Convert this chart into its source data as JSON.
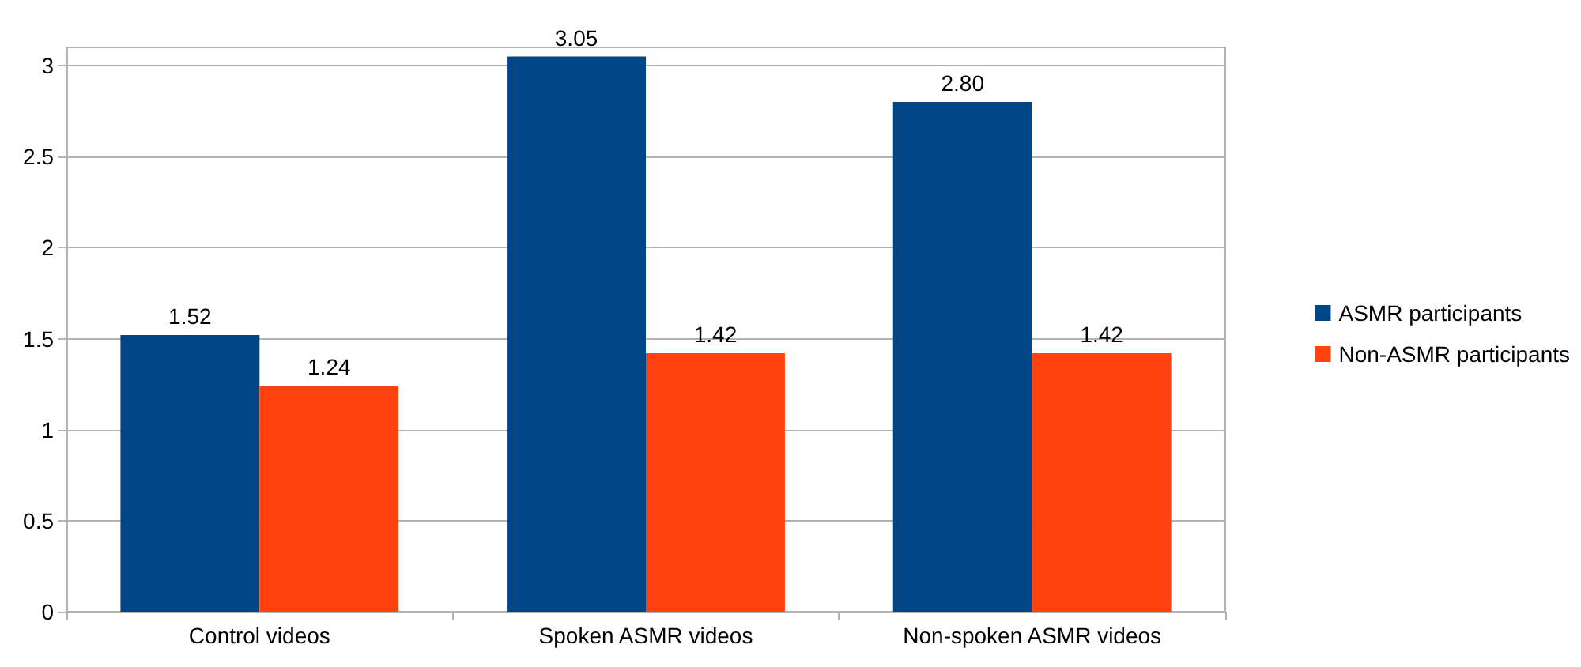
{
  "chart_data": {
    "type": "bar",
    "categories": [
      "Control videos",
      "Spoken ASMR videos",
      "Non-spoken ASMR videos"
    ],
    "series": [
      {
        "name": "ASMR participants",
        "color": "#004586",
        "values": [
          1.52,
          3.05,
          2.8
        ],
        "value_labels": [
          "1.52",
          "3.05",
          "2.80"
        ]
      },
      {
        "name": "Non-ASMR participants",
        "color": "#ff420e",
        "values": [
          1.24,
          1.42,
          1.42
        ],
        "value_labels": [
          "1.24",
          "1.42",
          "1.42"
        ]
      }
    ],
    "ylim": [
      0,
      3.1
    ],
    "yticks": [
      0,
      0.5,
      1,
      1.5,
      2,
      2.5,
      3
    ],
    "grid": "y",
    "legend": "right"
  }
}
